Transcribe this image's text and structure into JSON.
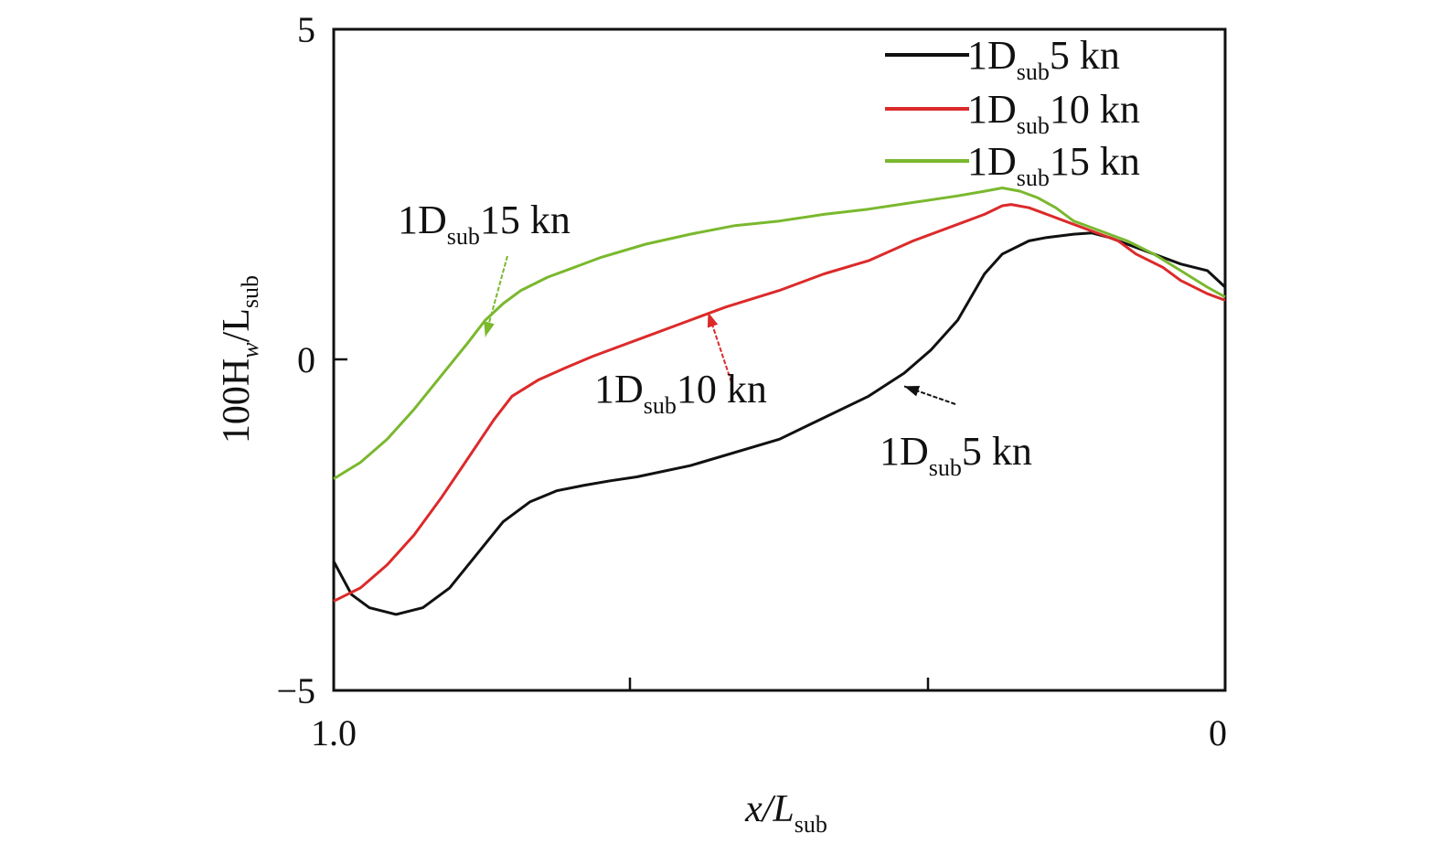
{
  "chart_data": {
    "type": "line",
    "title": "",
    "xlabel": {
      "main": "x/L",
      "sub": "sub"
    },
    "ylabel": {
      "prefix": "100H",
      "subw": "w",
      "mid": "/L",
      "sub": "sub"
    },
    "xlim": [
      1.0,
      0
    ],
    "ylim": [
      -5,
      5
    ],
    "x_tick_labels": [
      "1.0",
      "0"
    ],
    "y_tick_labels": [
      "5",
      "0",
      "−5"
    ],
    "legend_position": "top-right",
    "series": [
      {
        "name": {
          "pre": "1D",
          "sub": "sub",
          "post": "5 kn"
        },
        "color": "#111111",
        "x": [
          1.0,
          0.98,
          0.96,
          0.93,
          0.9,
          0.87,
          0.84,
          0.81,
          0.78,
          0.75,
          0.72,
          0.69,
          0.66,
          0.6,
          0.5,
          0.4,
          0.36,
          0.33,
          0.3,
          0.27,
          0.25,
          0.22,
          0.2,
          0.17,
          0.15,
          0.13,
          0.1,
          0.07,
          0.05,
          0.02,
          0.0
        ],
        "y": [
          -3.05,
          -3.55,
          -3.75,
          -3.85,
          -3.75,
          -3.45,
          -2.95,
          -2.45,
          -2.15,
          -1.98,
          -1.9,
          -1.83,
          -1.77,
          -1.6,
          -1.2,
          -0.55,
          -0.2,
          0.15,
          0.6,
          1.3,
          1.6,
          1.8,
          1.85,
          1.9,
          1.92,
          1.85,
          1.7,
          1.55,
          1.45,
          1.35,
          1.1
        ]
      },
      {
        "name": {
          "pre": "1D",
          "sub": "sub",
          "post": "10 kn"
        },
        "color": "#dc2a2a",
        "x": [
          1.0,
          0.97,
          0.94,
          0.91,
          0.88,
          0.85,
          0.82,
          0.8,
          0.77,
          0.74,
          0.71,
          0.68,
          0.65,
          0.6,
          0.56,
          0.5,
          0.45,
          0.4,
          0.35,
          0.3,
          0.27,
          0.25,
          0.24,
          0.22,
          0.2,
          0.18,
          0.15,
          0.12,
          0.1,
          0.07,
          0.05,
          0.02,
          0.0
        ],
        "y": [
          -3.65,
          -3.45,
          -3.1,
          -2.65,
          -2.1,
          -1.5,
          -0.9,
          -0.55,
          -0.3,
          -0.12,
          0.05,
          0.2,
          0.35,
          0.6,
          0.8,
          1.05,
          1.3,
          1.5,
          1.8,
          2.05,
          2.2,
          2.33,
          2.35,
          2.3,
          2.2,
          2.1,
          1.95,
          1.8,
          1.6,
          1.4,
          1.2,
          1.0,
          0.9
        ]
      },
      {
        "name": {
          "pre": "1D",
          "sub": "sub",
          "post": "15 kn"
        },
        "color": "#7ab82e",
        "x": [
          1.0,
          0.97,
          0.94,
          0.91,
          0.88,
          0.85,
          0.83,
          0.81,
          0.79,
          0.76,
          0.73,
          0.7,
          0.65,
          0.6,
          0.55,
          0.5,
          0.45,
          0.4,
          0.35,
          0.3,
          0.27,
          0.25,
          0.23,
          0.21,
          0.19,
          0.17,
          0.15,
          0.13,
          0.11,
          0.08,
          0.05,
          0.02,
          0.0
        ],
        "y": [
          -1.8,
          -1.55,
          -1.2,
          -0.75,
          -0.25,
          0.25,
          0.6,
          0.85,
          1.05,
          1.25,
          1.4,
          1.55,
          1.75,
          1.9,
          2.03,
          2.1,
          2.2,
          2.28,
          2.38,
          2.48,
          2.55,
          2.6,
          2.55,
          2.45,
          2.3,
          2.1,
          2.0,
          1.9,
          1.8,
          1.6,
          1.35,
          1.1,
          0.95
        ]
      }
    ],
    "annotations": [
      {
        "series": 2,
        "label": {
          "pre": "1D",
          "sub": "sub",
          "post": "15 kn"
        },
        "point": [
          0.83,
          0.35
        ]
      },
      {
        "series": 1,
        "label": {
          "pre": "1D",
          "sub": "sub",
          "post": "10 kn"
        },
        "point": [
          0.58,
          0.72
        ]
      },
      {
        "series": 0,
        "label": {
          "pre": "1D",
          "sub": "sub",
          "post": "5 kn"
        },
        "point": [
          0.36,
          -0.4
        ]
      }
    ]
  }
}
